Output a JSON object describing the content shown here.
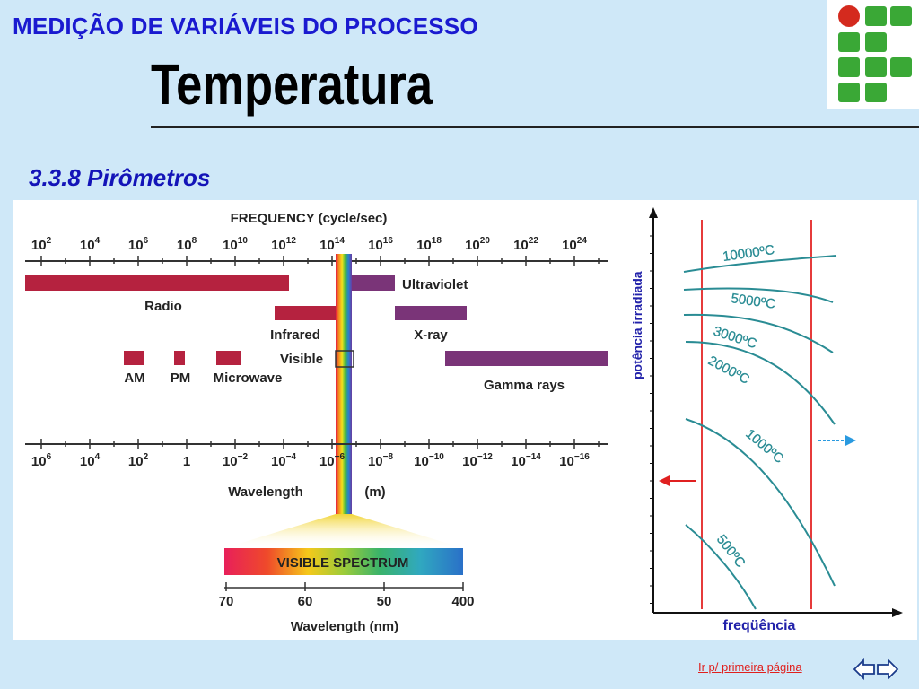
{
  "slide": {
    "header": "MEDIÇÃO DE VARIÁVEIS DO PROCESSO",
    "title": "Temperatura",
    "section": "3.3.8 Pirômetros",
    "footer_link": "Ir p/ primeira página"
  },
  "spectrum": {
    "frequency_title": "FREQUENCY (cycle/sec)",
    "frequency_ticks": [
      {
        "base": "10",
        "exp": "2"
      },
      {
        "base": "10",
        "exp": "4"
      },
      {
        "base": "10",
        "exp": "6"
      },
      {
        "base": "10",
        "exp": "8"
      },
      {
        "base": "10",
        "exp": "10"
      },
      {
        "base": "10",
        "exp": "12"
      },
      {
        "base": "10",
        "exp": "14"
      },
      {
        "base": "10",
        "exp": "16"
      },
      {
        "base": "10",
        "exp": "18"
      },
      {
        "base": "10",
        "exp": "20"
      },
      {
        "base": "10",
        "exp": "22"
      },
      {
        "base": "10",
        "exp": "24"
      }
    ],
    "wavelength_ticks": [
      {
        "base": "10",
        "exp": "6"
      },
      {
        "base": "10",
        "exp": "4"
      },
      {
        "base": "10",
        "exp": "2"
      },
      {
        "base": "1",
        "exp": ""
      },
      {
        "base": "10",
        "exp": "−2"
      },
      {
        "base": "10",
        "exp": "−4"
      },
      {
        "base": "10",
        "exp": "−6"
      },
      {
        "base": "10",
        "exp": "−8"
      },
      {
        "base": "10",
        "exp": "−10"
      },
      {
        "base": "10",
        "exp": "−12"
      },
      {
        "base": "10",
        "exp": "−14"
      },
      {
        "base": "10",
        "exp": "−16"
      }
    ],
    "bands": {
      "radio": "Radio",
      "ultraviolet": "Ultraviolet",
      "infrared": "Infrared",
      "xray": "X-ray",
      "visible": "Visible",
      "am": "AM",
      "pm": "PM",
      "microwave": "Microwave",
      "gamma": "Gamma rays"
    },
    "wavelength_label": "Wavelength",
    "wavelength_unit": "(m)",
    "visible_title": "VISIBLE SPECTRUM",
    "visible_ticks": [
      "70",
      "60",
      "50",
      "400"
    ],
    "visible_axis_label": "Wavelength (nm)",
    "colors": {
      "band_red": "#b5223f",
      "band_purple": "#7a3478"
    }
  },
  "radiation": {
    "y_label": "potência irradiada",
    "x_label": "freqüência",
    "curves": [
      "10000ºC",
      "5000ºC",
      "3000ºC",
      "2000ºC",
      "1000ºC",
      "500ºC"
    ],
    "colors": {
      "curve": "#2a8c94",
      "limit": "#e63b3b",
      "arrow_left": "#e02020",
      "arrow_right": "#2a9ae0"
    }
  }
}
